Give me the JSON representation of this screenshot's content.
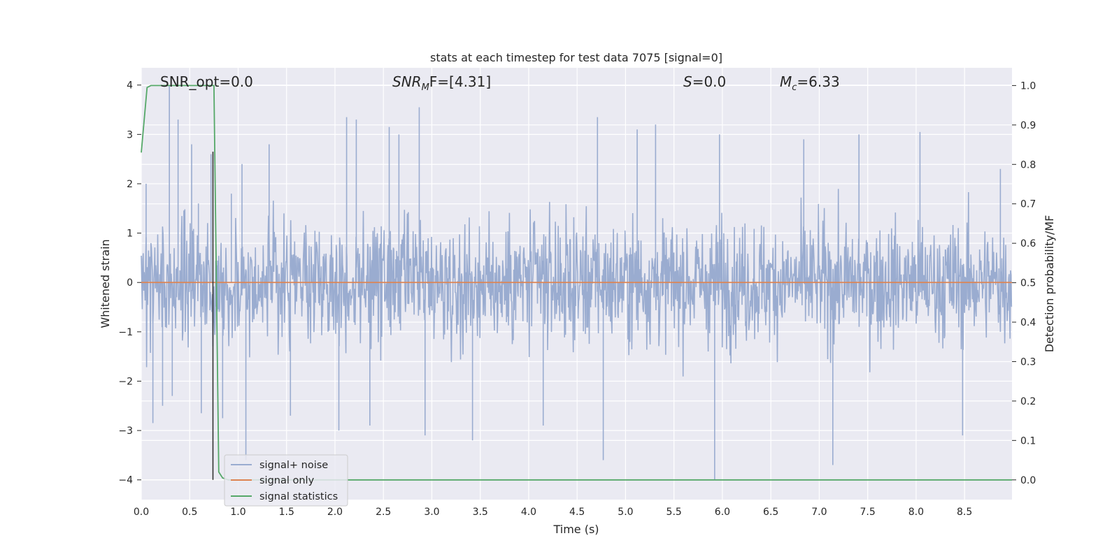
{
  "chart_data": {
    "type": "line",
    "title": "stats at each timestep for test data 7075 [signal=0]",
    "xlabel": "Time (s)",
    "ylabel": "Whitened strain",
    "y2label": "Detection probability/MF",
    "xlim": [
      0,
      8.99
    ],
    "ylim": [
      -4.4,
      4.35
    ],
    "y2lim": [
      -0.05,
      1.045
    ],
    "x_ticks": [
      0.0,
      0.5,
      1.0,
      1.5,
      2.0,
      2.5,
      3.0,
      3.5,
      4.0,
      4.5,
      5.0,
      5.5,
      6.0,
      6.5,
      7.0,
      7.5,
      8.0,
      8.5
    ],
    "x_tick_labels": [
      "0.0",
      "0.5",
      "1.0",
      "1.5",
      "2.0",
      "2.5",
      "3.0",
      "3.5",
      "4.0",
      "4.5",
      "5.0",
      "5.5",
      "6.0",
      "6.5",
      "7.0",
      "7.5",
      "8.0",
      "8.5"
    ],
    "y_ticks": [
      4,
      3,
      2,
      1,
      0,
      -1,
      -2,
      -3,
      -4
    ],
    "y_tick_labels": [
      "4",
      "3",
      "2",
      "1",
      "0",
      "−1",
      "−2",
      "−3",
      "−4"
    ],
    "y2_ticks": [
      1.0,
      0.9,
      0.8,
      0.7,
      0.6,
      0.5,
      0.4,
      0.3,
      0.2,
      0.1,
      0.0
    ],
    "y2_tick_labels": [
      "1.0",
      "0.9",
      "0.8",
      "0.7",
      "0.6",
      "0.5",
      "0.4",
      "0.3",
      "0.2",
      "0.1",
      "0.0"
    ],
    "grid": true,
    "legend_position": "lower-left",
    "annotations": {
      "snr_opt": "SNR_opt=0.0",
      "snr_mf_main": "SNR",
      "snr_mf_sub": "M",
      "snr_mf_rest": "F=[4.31]",
      "s_main": "S",
      "s_rest": "=0.0",
      "mc_main": "M",
      "mc_sub": "c",
      "mc_rest": "=6.33"
    },
    "series": [
      {
        "name": "signal+ noise",
        "color": "#9aacd0",
        "x_range": [
          0,
          8.99
        ],
        "y_envelope": [
          -4.0,
          4.0
        ],
        "peaks": [
          {
            "x": 0.05,
            "y": 2.0
          },
          {
            "x": 0.12,
            "y": -2.85
          },
          {
            "x": 0.22,
            "y": -2.5
          },
          {
            "x": 0.29,
            "y": 4.0
          },
          {
            "x": 0.32,
            "y": -2.3
          },
          {
            "x": 0.38,
            "y": 3.3
          },
          {
            "x": 0.52,
            "y": 2.8
          },
          {
            "x": 0.59,
            "y": 1.6
          },
          {
            "x": 0.62,
            "y": -2.65
          },
          {
            "x": 0.72,
            "y": 2.6
          },
          {
            "x": 0.84,
            "y": -2.75
          },
          {
            "x": 0.93,
            "y": 1.8
          },
          {
            "x": 1.04,
            "y": 2.4
          },
          {
            "x": 1.08,
            "y": -3.6
          },
          {
            "x": 1.32,
            "y": 2.8
          },
          {
            "x": 1.54,
            "y": -2.7
          },
          {
            "x": 2.04,
            "y": -3.0
          },
          {
            "x": 2.12,
            "y": 3.35
          },
          {
            "x": 2.22,
            "y": 3.3
          },
          {
            "x": 2.36,
            "y": -2.9
          },
          {
            "x": 2.56,
            "y": 3.15
          },
          {
            "x": 2.66,
            "y": 3.0
          },
          {
            "x": 2.87,
            "y": 3.55
          },
          {
            "x": 2.93,
            "y": -3.1
          },
          {
            "x": 3.42,
            "y": -3.2
          },
          {
            "x": 4.15,
            "y": -2.9
          },
          {
            "x": 4.71,
            "y": 3.35
          },
          {
            "x": 4.77,
            "y": -3.6
          },
          {
            "x": 5.12,
            "y": 3.1
          },
          {
            "x": 5.31,
            "y": 3.2
          },
          {
            "x": 5.92,
            "y": -4.0
          },
          {
            "x": 5.97,
            "y": 3.0
          },
          {
            "x": 6.84,
            "y": 2.9
          },
          {
            "x": 7.14,
            "y": -3.7
          },
          {
            "x": 7.41,
            "y": 3.0
          },
          {
            "x": 8.04,
            "y": 3.05
          },
          {
            "x": 8.48,
            "y": -3.1
          },
          {
            "x": 8.87,
            "y": 2.3
          }
        ]
      },
      {
        "name": "signal only",
        "color": "#dd8452",
        "x": [
          0,
          8.99
        ],
        "y": [
          0,
          0
        ]
      },
      {
        "name": "signal statistics",
        "color": "#55a868",
        "axis": "right",
        "x": [
          0.0,
          0.06,
          0.1,
          0.74,
          0.75,
          0.8,
          0.84,
          0.9,
          1.0,
          8.99
        ],
        "y": [
          0.83,
          0.995,
          1.0,
          1.0,
          1.0,
          0.02,
          0.005,
          0.0,
          0.0,
          0.0
        ]
      }
    ],
    "markers": [
      {
        "name": "vertical marker",
        "x": 0.74,
        "y": [
          -4.0,
          2.65
        ],
        "color": "#333333"
      }
    ]
  }
}
